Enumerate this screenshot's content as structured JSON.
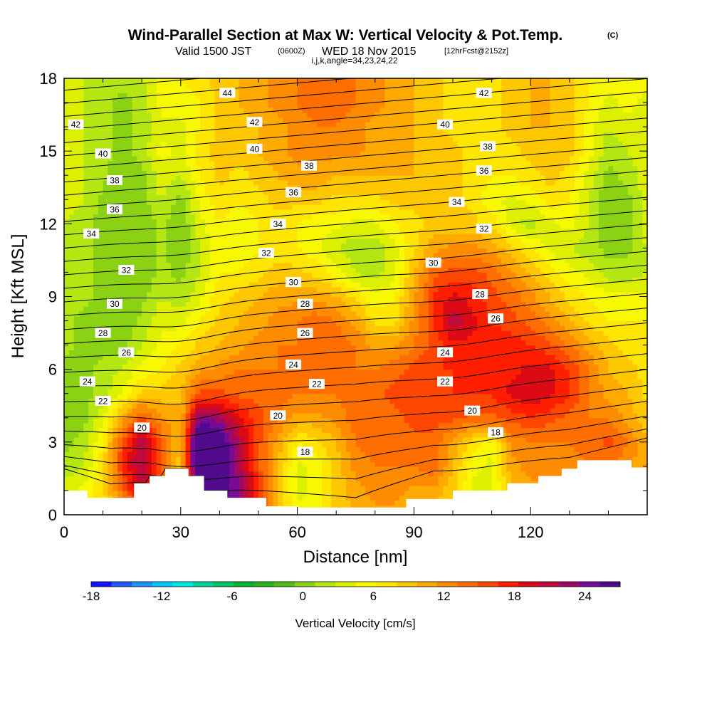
{
  "title": {
    "main": "Wind-Parallel Section at Max W: Vertical Velocity & Pot.Temp.",
    "copyright": "(C)",
    "valid_prefix": "Valid 1500 JST",
    "valid_utc": "(0600Z)",
    "valid_date": "WED 18 Nov 2015",
    "forecast": "[12hrFcst@2152z]",
    "params": "i,j,k,angle=34,23,24,22"
  },
  "chart_data": {
    "type": "heatmap",
    "xlabel": "Distance [nm]",
    "ylabel": "Height [Kft MSL]",
    "xlim": [
      0,
      150
    ],
    "ylim": [
      0,
      18
    ],
    "x_ticks": [
      "0",
      "30",
      "60",
      "90",
      "120"
    ],
    "y_ticks": [
      "0",
      "3",
      "6",
      "9",
      "12",
      "15",
      "18"
    ],
    "colorbar": {
      "title": "Vertical Velocity [cm/s]",
      "min": -18,
      "max": 27,
      "step": 1.5,
      "tick_labels": [
        "-18",
        "-12",
        "-6",
        "0",
        "6",
        "12",
        "18",
        "24"
      ],
      "colors": [
        "#1414ff",
        "#1e5aff",
        "#1e96ff",
        "#00c8ff",
        "#00e6e6",
        "#00d2a0",
        "#00c864",
        "#00b432",
        "#28b41e",
        "#50be14",
        "#8cd214",
        "#b4e614",
        "#dcf000",
        "#f8f800",
        "#ffe600",
        "#ffc800",
        "#ffaa00",
        "#ff8c00",
        "#ff6e00",
        "#ff4600",
        "#ff1e00",
        "#dc0a14",
        "#be0a3c",
        "#a00a64",
        "#780a96",
        "#500a8c"
      ]
    },
    "vertical_velocity_grid": {
      "x": [
        0,
        5,
        10,
        15,
        20,
        25,
        30,
        35,
        40,
        45,
        50,
        55,
        60,
        65,
        70,
        75,
        80,
        85,
        90,
        95,
        100,
        105,
        110,
        115,
        120,
        125,
        130,
        135,
        140,
        145,
        150
      ],
      "y": [
        0,
        1,
        2,
        3,
        4,
        5,
        6,
        7,
        8,
        9,
        10,
        11,
        12,
        13,
        14,
        15,
        16,
        17,
        18
      ],
      "values": [
        [
          1,
          2,
          3,
          6,
          9,
          8,
          5,
          14,
          18,
          17,
          12,
          6,
          2,
          3,
          5,
          6,
          7,
          7,
          6,
          5,
          4,
          4,
          4,
          5,
          6,
          6,
          6,
          6,
          6,
          6,
          6
        ],
        [
          1,
          2,
          4,
          10,
          15,
          10,
          5,
          22,
          21,
          18,
          12,
          6,
          1,
          2,
          5,
          7,
          8,
          8,
          7,
          7,
          5,
          1,
          1,
          6,
          7,
          7,
          7,
          8,
          8,
          7,
          6
        ],
        [
          -1,
          0,
          4,
          12,
          17,
          11,
          5,
          26,
          22,
          17,
          11,
          6,
          1,
          2,
          5,
          8,
          9,
          9,
          9,
          10,
          6,
          2,
          1,
          7,
          8,
          8,
          8,
          9,
          9,
          8,
          6
        ],
        [
          -2,
          -1,
          3,
          11,
          17,
          10,
          6,
          26,
          22,
          16,
          11,
          7,
          3,
          4,
          6,
          9,
          10,
          10,
          10,
          10,
          7,
          4,
          2,
          8,
          9,
          9,
          9,
          10,
          11,
          9,
          6
        ],
        [
          -3,
          -2,
          1,
          7,
          11,
          8,
          6,
          19,
          17,
          14,
          11,
          9,
          7,
          7,
          8,
          10,
          10,
          10,
          11,
          11,
          11,
          10,
          10,
          11,
          12,
          11,
          10,
          9,
          9,
          7,
          5
        ],
        [
          -3,
          -2,
          -1,
          2,
          5,
          5,
          6,
          11,
          11,
          10,
          10,
          10,
          9,
          9,
          9,
          10,
          10,
          11,
          11,
          11,
          12,
          12,
          12,
          14,
          15,
          14,
          12,
          9,
          7,
          6,
          4
        ],
        [
          -2,
          -2,
          -1,
          0,
          2,
          3,
          5,
          7,
          8,
          9,
          9,
          9,
          9,
          9,
          9,
          9,
          9,
          10,
          11,
          12,
          12,
          13,
          13,
          13,
          14,
          14,
          12,
          9,
          6,
          5,
          4
        ],
        [
          -1,
          -2,
          -2,
          -2,
          0,
          2,
          3,
          5,
          6,
          7,
          8,
          9,
          9,
          10,
          10,
          9,
          7,
          7,
          9,
          11,
          13,
          13,
          13,
          13,
          12,
          11,
          9,
          7,
          5,
          4,
          4
        ],
        [
          -1,
          -2,
          -2,
          -3,
          -1,
          1,
          1,
          3,
          5,
          6,
          7,
          8,
          9,
          10,
          9,
          7,
          4,
          4,
          8,
          12,
          16,
          14,
          12,
          11,
          10,
          8,
          6,
          4,
          3,
          3,
          3
        ],
        [
          0,
          -1,
          -2,
          -3,
          -2,
          0,
          -1,
          1,
          4,
          5,
          6,
          7,
          7,
          7,
          6,
          4,
          2,
          3,
          7,
          12,
          14,
          13,
          11,
          10,
          8,
          6,
          4,
          3,
          2,
          2,
          2
        ],
        [
          0,
          -1,
          -2,
          -3,
          -3,
          -1,
          -2,
          0,
          3,
          3,
          4,
          5,
          5,
          4,
          2,
          0,
          -1,
          1,
          6,
          10,
          11,
          11,
          10,
          8,
          6,
          4,
          2,
          1,
          -1,
          -1,
          0
        ],
        [
          0,
          -1,
          -2,
          -3,
          -3,
          -1,
          -3,
          0,
          3,
          2,
          3,
          4,
          3,
          2,
          0,
          -1,
          -1,
          1,
          4,
          7,
          8,
          8,
          7,
          5,
          3,
          1,
          0,
          -1,
          -2,
          -2,
          0
        ],
        [
          0,
          -1,
          -2,
          -3,
          -3,
          -1,
          -3,
          1,
          3,
          2,
          3,
          4,
          3,
          2,
          2,
          1,
          1,
          3,
          4,
          5,
          5,
          5,
          4,
          1,
          -1,
          1,
          2,
          0,
          -3,
          -2,
          1
        ],
        [
          1,
          0,
          -2,
          -3,
          -2,
          0,
          -2,
          2,
          4,
          3,
          4,
          5,
          5,
          5,
          4,
          4,
          4,
          5,
          5,
          5,
          5,
          4,
          2,
          1,
          2,
          4,
          3,
          0,
          -3,
          -2,
          1
        ],
        [
          1,
          0,
          -1,
          -3,
          -2,
          1,
          0,
          3,
          5,
          4,
          5,
          6,
          7,
          7,
          6,
          6,
          6,
          6,
          6,
          5,
          5,
          4,
          3,
          3,
          4,
          5,
          4,
          1,
          -2,
          -1,
          1
        ],
        [
          2,
          0,
          -1,
          -2,
          -1,
          2,
          1,
          4,
          5,
          5,
          6,
          7,
          8,
          8,
          8,
          8,
          7,
          6,
          6,
          5,
          5,
          4,
          4,
          4,
          5,
          6,
          5,
          2,
          -1,
          0,
          1
        ],
        [
          1,
          0,
          -1,
          -2,
          -1,
          1,
          1,
          3,
          5,
          5,
          6,
          7,
          8,
          9,
          9,
          8,
          7,
          6,
          6,
          5,
          4,
          4,
          4,
          5,
          6,
          6,
          5,
          2,
          0,
          1,
          1
        ],
        [
          1,
          0,
          -1,
          -2,
          -1,
          2,
          2,
          3,
          5,
          6,
          7,
          8,
          9,
          10,
          10,
          9,
          8,
          7,
          6,
          5,
          4,
          4,
          4,
          5,
          6,
          6,
          5,
          3,
          1,
          2,
          1
        ],
        [
          1,
          0,
          0,
          -1,
          0,
          2,
          3,
          4,
          5,
          6,
          7,
          8,
          9,
          10,
          10,
          9,
          8,
          7,
          6,
          5,
          4,
          4,
          4,
          5,
          6,
          6,
          5,
          3,
          2,
          2,
          2
        ]
      ]
    },
    "terrain": [
      {
        "x": 0,
        "y": 1.0
      },
      {
        "x": 6,
        "y": 1.0
      },
      {
        "x": 6,
        "y": 0.7
      },
      {
        "x": 18,
        "y": 0.7
      },
      {
        "x": 18,
        "y": 1.3
      },
      {
        "x": 22,
        "y": 1.3
      },
      {
        "x": 22,
        "y": 1.6
      },
      {
        "x": 26,
        "y": 1.6
      },
      {
        "x": 26,
        "y": 1.9
      },
      {
        "x": 32,
        "y": 1.9
      },
      {
        "x": 32,
        "y": 1.6
      },
      {
        "x": 36,
        "y": 1.6
      },
      {
        "x": 36,
        "y": 1.0
      },
      {
        "x": 42,
        "y": 1.0
      },
      {
        "x": 42,
        "y": 0.7
      },
      {
        "x": 52,
        "y": 0.7
      },
      {
        "x": 52,
        "y": 0.35
      },
      {
        "x": 60,
        "y": 0.35
      },
      {
        "x": 60,
        "y": 0.3
      },
      {
        "x": 88,
        "y": 0.3
      },
      {
        "x": 88,
        "y": 0.65
      },
      {
        "x": 100,
        "y": 0.65
      },
      {
        "x": 100,
        "y": 1.0
      },
      {
        "x": 114,
        "y": 1.0
      },
      {
        "x": 114,
        "y": 1.3
      },
      {
        "x": 122,
        "y": 1.3
      },
      {
        "x": 122,
        "y": 1.6
      },
      {
        "x": 128,
        "y": 1.6
      },
      {
        "x": 128,
        "y": 1.9
      },
      {
        "x": 132,
        "y": 1.9
      },
      {
        "x": 132,
        "y": 2.25
      },
      {
        "x": 146,
        "y": 2.25
      },
      {
        "x": 146,
        "y": 1.95
      },
      {
        "x": 150,
        "y": 1.95
      }
    ],
    "theta_contour_count": 30,
    "contour_labels": [
      {
        "text": "44",
        "x": 42,
        "y": 17.4
      },
      {
        "text": "42",
        "x": 3,
        "y": 16.1
      },
      {
        "text": "42",
        "x": 49,
        "y": 16.2
      },
      {
        "text": "42",
        "x": 108,
        "y": 17.4
      },
      {
        "text": "40",
        "x": 10,
        "y": 14.9
      },
      {
        "text": "40",
        "x": 49,
        "y": 15.1
      },
      {
        "text": "40",
        "x": 98,
        "y": 16.1
      },
      {
        "text": "38",
        "x": 13,
        "y": 13.8
      },
      {
        "text": "38",
        "x": 63,
        "y": 14.4
      },
      {
        "text": "38",
        "x": 109,
        "y": 15.2
      },
      {
        "text": "36",
        "x": 13,
        "y": 12.6
      },
      {
        "text": "36",
        "x": 59,
        "y": 13.3
      },
      {
        "text": "36",
        "x": 108,
        "y": 14.2
      },
      {
        "text": "34",
        "x": 7,
        "y": 11.6
      },
      {
        "text": "34",
        "x": 55,
        "y": 12.0
      },
      {
        "text": "34",
        "x": 101,
        "y": 12.9
      },
      {
        "text": "32",
        "x": 16,
        "y": 10.1
      },
      {
        "text": "32",
        "x": 52,
        "y": 10.8
      },
      {
        "text": "32",
        "x": 108,
        "y": 11.8
      },
      {
        "text": "30",
        "x": 13,
        "y": 8.7
      },
      {
        "text": "30",
        "x": 59,
        "y": 9.6
      },
      {
        "text": "30",
        "x": 95,
        "y": 10.4
      },
      {
        "text": "28",
        "x": 10,
        "y": 7.5
      },
      {
        "text": "28",
        "x": 62,
        "y": 8.7
      },
      {
        "text": "28",
        "x": 107,
        "y": 9.1
      },
      {
        "text": "26",
        "x": 16,
        "y": 6.7
      },
      {
        "text": "26",
        "x": 62,
        "y": 7.5
      },
      {
        "text": "26",
        "x": 111,
        "y": 8.1
      },
      {
        "text": "24",
        "x": 6,
        "y": 5.5
      },
      {
        "text": "24",
        "x": 59,
        "y": 6.2
      },
      {
        "text": "24",
        "x": 98,
        "y": 6.7
      },
      {
        "text": "22",
        "x": 10,
        "y": 4.7
      },
      {
        "text": "22",
        "x": 65,
        "y": 5.4
      },
      {
        "text": "22",
        "x": 98,
        "y": 5.5
      },
      {
        "text": "20",
        "x": 20,
        "y": 3.6
      },
      {
        "text": "20",
        "x": 55,
        "y": 4.1
      },
      {
        "text": "20",
        "x": 105,
        "y": 4.3
      },
      {
        "text": "18",
        "x": 62,
        "y": 2.6
      },
      {
        "text": "18",
        "x": 111,
        "y": 3.4
      }
    ]
  }
}
